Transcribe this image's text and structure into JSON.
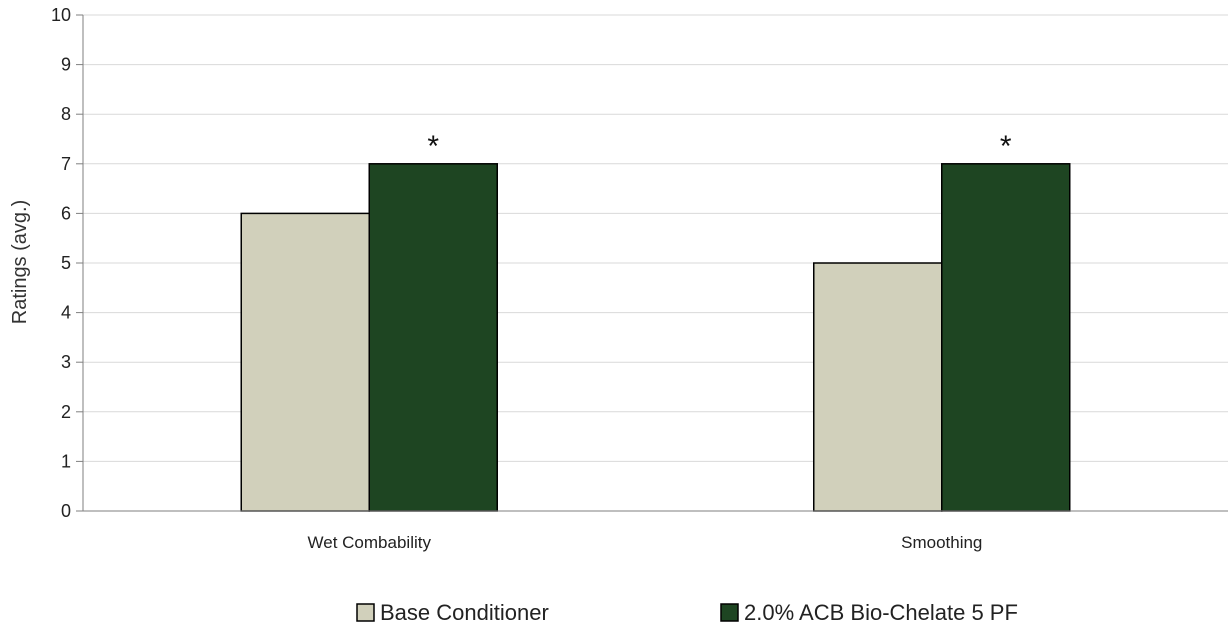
{
  "chart_data": {
    "type": "bar",
    "ylabel": "Ratings (avg.)",
    "ylim": [
      0,
      10
    ],
    "yticks": [
      0,
      1,
      2,
      3,
      4,
      5,
      6,
      7,
      8,
      9,
      10
    ],
    "grid": true,
    "legend_position": "bottom",
    "categories": [
      "Wet Combability",
      "Smoothing"
    ],
    "series": [
      {
        "name": "Base Conditioner",
        "values": [
          6,
          5
        ],
        "color": "#d1d0bb"
      },
      {
        "name": "2.0% ACB Bio-Chelate 5 PF",
        "values": [
          7,
          7
        ],
        "color": "#1e4522"
      }
    ],
    "annotations": [
      {
        "category": "Wet Combability",
        "series": "2.0% ACB Bio-Chelate 5 PF",
        "text": "*"
      },
      {
        "category": "Smoothing",
        "series": "2.0% ACB Bio-Chelate 5 PF",
        "text": "*"
      }
    ]
  }
}
